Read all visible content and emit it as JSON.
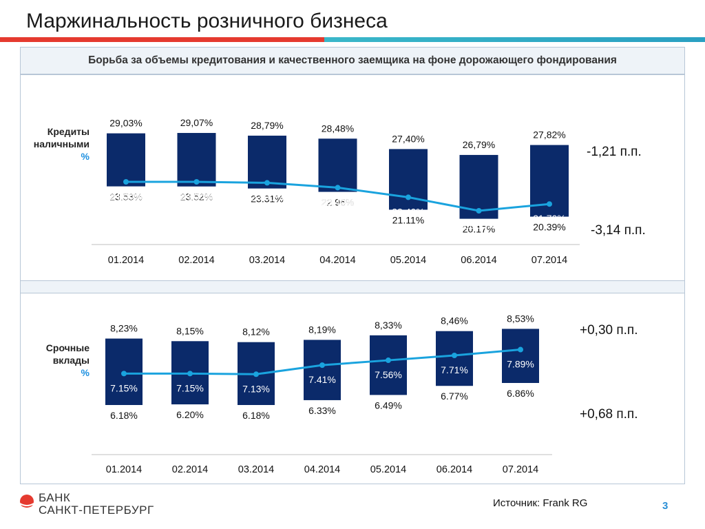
{
  "title": "Маржинальность розничного бизнеса",
  "subtitle": "Борьба за объемы кредитования и качественного заемщика на фоне дорожающего фондирования",
  "colors": {
    "bar": "#0b2a6a",
    "line": "#1aa3de",
    "accent_red": "#e53a2f",
    "accent_teal": "#2aa0c2"
  },
  "chart_data": [
    {
      "type": "bar",
      "row_label": [
        "Кредиты",
        "наличными"
      ],
      "unit_label": "%",
      "categories": [
        "01.2014",
        "02.2014",
        "03.2014",
        "04.2014",
        "05.2014",
        "06.2014",
        "07.2014"
      ],
      "series": [
        {
          "name": "",
          "role": "top",
          "values": [
            29.03,
            29.07,
            28.79,
            28.48,
            27.4,
            26.79,
            27.82
          ],
          "labels": [
            "29,03%",
            "29,07%",
            "28,79%",
            "28,48%",
            "27,40%",
            "26,79%",
            "27,82%"
          ]
        },
        {
          "name": "",
          "role": "bottom",
          "values": [
            23.53,
            23.52,
            23.31,
            22.96,
            21.11,
            20.17,
            20.39
          ],
          "labels": [
            "23.53%",
            "23.52%",
            "23.31%",
            "22.96%",
            "21.11%",
            "20.17%",
            "20.39%"
          ]
        },
        {
          "name": "",
          "role": "line",
          "values": [
            24.0,
            24.0,
            23.9,
            23.4,
            22.4,
            21.0,
            21.7
          ],
          "labels": [
            "24.00%",
            "24.00%",
            "23.90%",
            "23.40%",
            "22.40%",
            "21.00%",
            "21.70%"
          ]
        }
      ],
      "ylim": [
        18,
        30
      ],
      "delta_top": "-1,21 п.п.",
      "delta_bottom": "-3,14 п.п."
    },
    {
      "type": "bar",
      "row_label": [
        "Срочные",
        "вклады"
      ],
      "unit_label": "%",
      "categories": [
        "01.2014",
        "02.2014",
        "03.2014",
        "04.2014",
        "05.2014",
        "06.2014",
        "07.2014"
      ],
      "series": [
        {
          "name": "",
          "role": "top",
          "values": [
            8.23,
            8.15,
            8.12,
            8.19,
            8.33,
            8.46,
            8.53
          ],
          "labels": [
            "8,23%",
            "8,15%",
            "8,12%",
            "8,19%",
            "8,33%",
            "8,46%",
            "8,53%"
          ]
        },
        {
          "name": "",
          "role": "bottom",
          "values": [
            6.18,
            6.2,
            6.18,
            6.33,
            6.49,
            6.77,
            6.86
          ],
          "labels": [
            "6.18%",
            "6.20%",
            "6.18%",
            "6.33%",
            "6.49%",
            "6.77%",
            "6.86%"
          ]
        },
        {
          "name": "",
          "role": "line",
          "values": [
            7.15,
            7.15,
            7.13,
            7.41,
            7.56,
            7.71,
            7.89
          ],
          "labels": [
            "7.15%",
            "7.15%",
            "7.13%",
            "7.41%",
            "7.56%",
            "7.71%",
            "7.89%"
          ]
        }
      ],
      "ylim": [
        5.5,
        8.9
      ],
      "delta_top": "+0,30 п.п.",
      "delta_bottom": "+0,68 п.п."
    }
  ],
  "footer": {
    "logo_line1": "БАНК",
    "logo_line2": "САНКТ-ПЕТЕРБУРГ",
    "source": "Источник: Frank RG",
    "page_number": "3"
  }
}
